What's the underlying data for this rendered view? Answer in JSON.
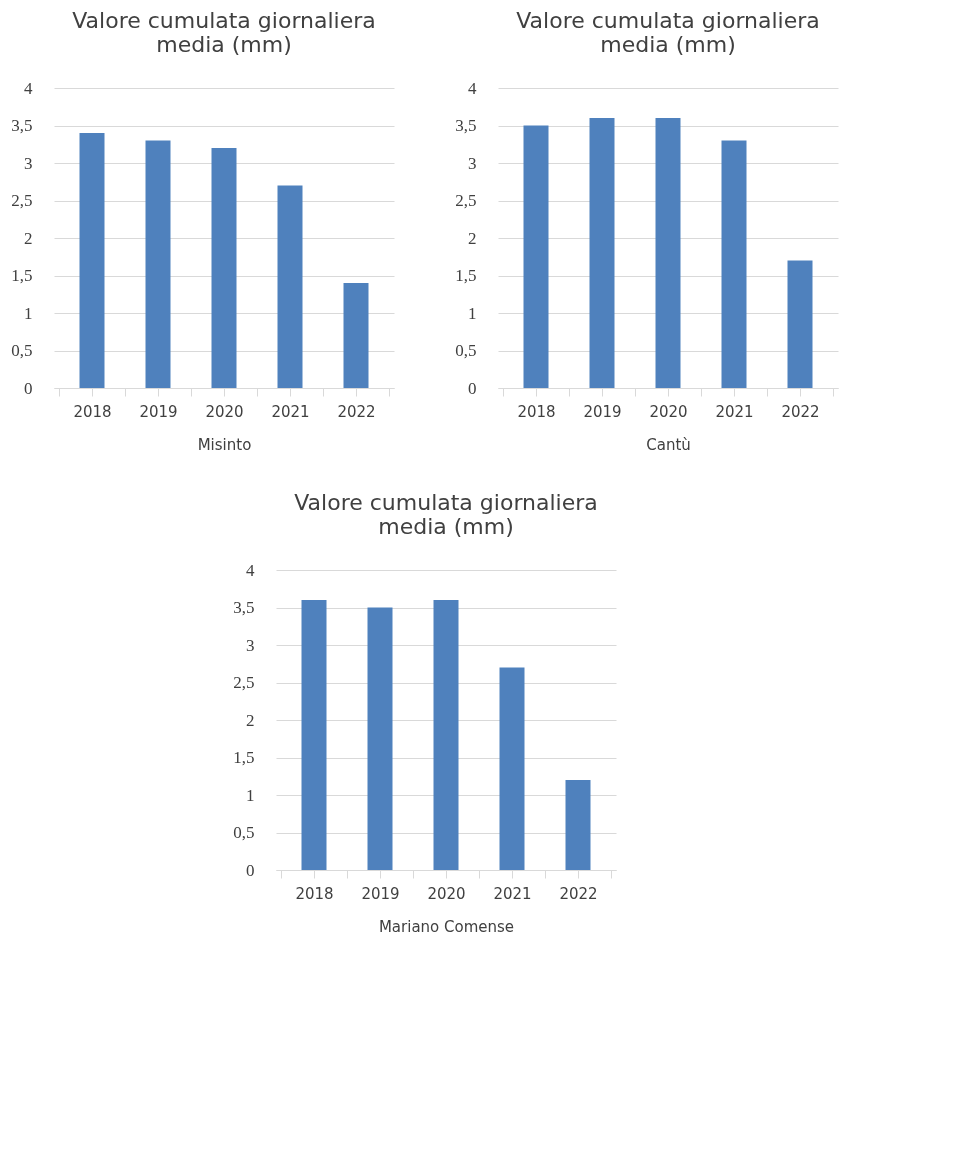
{
  "chart_data": [
    {
      "type": "bar",
      "title": "Valore cumulata giornaliera media (mm)",
      "xlabel": "Misinto",
      "categories": [
        "2018",
        "2019",
        "2020",
        "2021",
        "2022"
      ],
      "values": [
        3.4,
        3.3,
        3.2,
        2.7,
        1.4
      ],
      "color": "#4f81bd",
      "ylim": [
        0,
        4
      ],
      "yticks": [
        0,
        {
          "value": 0.5,
          "label": "0,5"
        },
        1,
        {
          "value": 1.5,
          "label": "1,5"
        },
        2,
        {
          "value": 2.5,
          "label": "2,5"
        },
        3,
        {
          "value": 3.5,
          "label": "3,5"
        },
        4
      ],
      "grid": "y"
    },
    {
      "type": "bar",
      "title": "Valore cumulata giornaliera media (mm)",
      "xlabel": "Cantù",
      "categories": [
        "2018",
        "2019",
        "2020",
        "2021",
        "2022"
      ],
      "values": [
        3.5,
        3.6,
        3.6,
        3.3,
        1.7
      ],
      "color": "#4f81bd",
      "ylim": [
        0,
        4
      ],
      "yticks": [
        0,
        {
          "value": 0.5,
          "label": "0,5"
        },
        1,
        {
          "value": 1.5,
          "label": "1,5"
        },
        2,
        {
          "value": 2.5,
          "label": "2,5"
        },
        3,
        {
          "value": 3.5,
          "label": "3,5"
        },
        4
      ],
      "grid": "y"
    },
    {
      "type": "bar",
      "title": "Valore cumulata giornaliera media (mm)",
      "xlabel": "Mariano Comense",
      "categories": [
        "2018",
        "2019",
        "2020",
        "2021",
        "2022"
      ],
      "values": [
        3.6,
        3.5,
        3.6,
        2.7,
        1.2
      ],
      "color": "#4f81bd",
      "ylim": [
        0,
        4
      ],
      "yticks": [
        0,
        {
          "value": 0.5,
          "label": "0,5"
        },
        1,
        {
          "value": 1.5,
          "label": "1,5"
        },
        2,
        {
          "value": 2.5,
          "label": "2,5"
        },
        3,
        {
          "value": 3.5,
          "label": "3,5"
        },
        4
      ],
      "grid": "y"
    }
  ]
}
